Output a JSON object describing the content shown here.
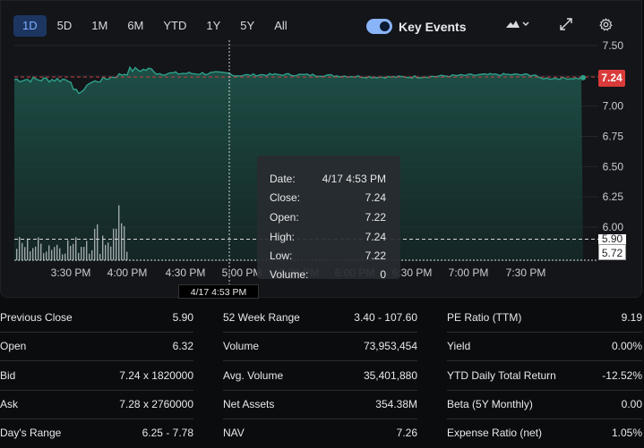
{
  "range_tabs": [
    "1D",
    "5D",
    "1M",
    "6M",
    "YTD",
    "1Y",
    "5Y",
    "All"
  ],
  "active_tab": "1D",
  "key_events_label": "Key Events",
  "key_events_on": true,
  "icons": {
    "chart_type": "mountain-chart-icon",
    "expand": "expand-icon",
    "settings": "gear-icon"
  },
  "colors": {
    "accent": "#7fb0ff",
    "line": "#2f9f8a",
    "price_tag": "#d93a3a"
  },
  "chart_data": {
    "type": "area",
    "y_ticks": [
      "7.50",
      "7.25",
      "7.00",
      "6.75",
      "6.50",
      "6.25",
      "6.00"
    ],
    "x_ticks": [
      "3:30 PM",
      "4:00 PM",
      "4:30 PM",
      "5:00 PM",
      "5:30 PM",
      "6:00 PM",
      "6:30 PM",
      "7:00 PM",
      "7:30 PM"
    ],
    "ylim": [
      5.6,
      7.55
    ],
    "current_price": "7.24",
    "previous_close_label": "5.90",
    "low_label": "5.72",
    "previous_close": 5.9
  },
  "tooltip": {
    "rows": [
      {
        "k": "Date:",
        "v": "4/17 4:53 PM"
      },
      {
        "k": "Close:",
        "v": "7.24"
      },
      {
        "k": "Open:",
        "v": "7.22"
      },
      {
        "k": "High:",
        "v": "7.24"
      },
      {
        "k": "Low:",
        "v": "7.22"
      },
      {
        "k": "Volume:",
        "v": "0"
      }
    ]
  },
  "crosshair_date": "4/17 4:53 PM",
  "stats": [
    [
      {
        "k": "Previous Close",
        "v": "5.90"
      },
      {
        "k": "Open",
        "v": "6.32"
      },
      {
        "k": "Bid",
        "v": "7.24 x 1820000"
      },
      {
        "k": "Ask",
        "v": "7.28 x 2760000"
      },
      {
        "k": "Day's Range",
        "v": "6.25 - 7.78"
      }
    ],
    [
      {
        "k": "52 Week Range",
        "v": "3.40 - 107.60"
      },
      {
        "k": "Volume",
        "v": "73,953,454"
      },
      {
        "k": "Avg. Volume",
        "v": "35,401,880"
      },
      {
        "k": "Net Assets",
        "v": "354.38M"
      },
      {
        "k": "NAV",
        "v": "7.26"
      }
    ],
    [
      {
        "k": "PE Ratio (TTM)",
        "v": "9.19"
      },
      {
        "k": "Yield",
        "v": "0.00%"
      },
      {
        "k": "YTD Daily Total Return",
        "v": "-12.52%"
      },
      {
        "k": "Beta (5Y Monthly)",
        "v": "0.00"
      },
      {
        "k": "Expense Ratio (net)",
        "v": "1.05%"
      }
    ]
  ]
}
